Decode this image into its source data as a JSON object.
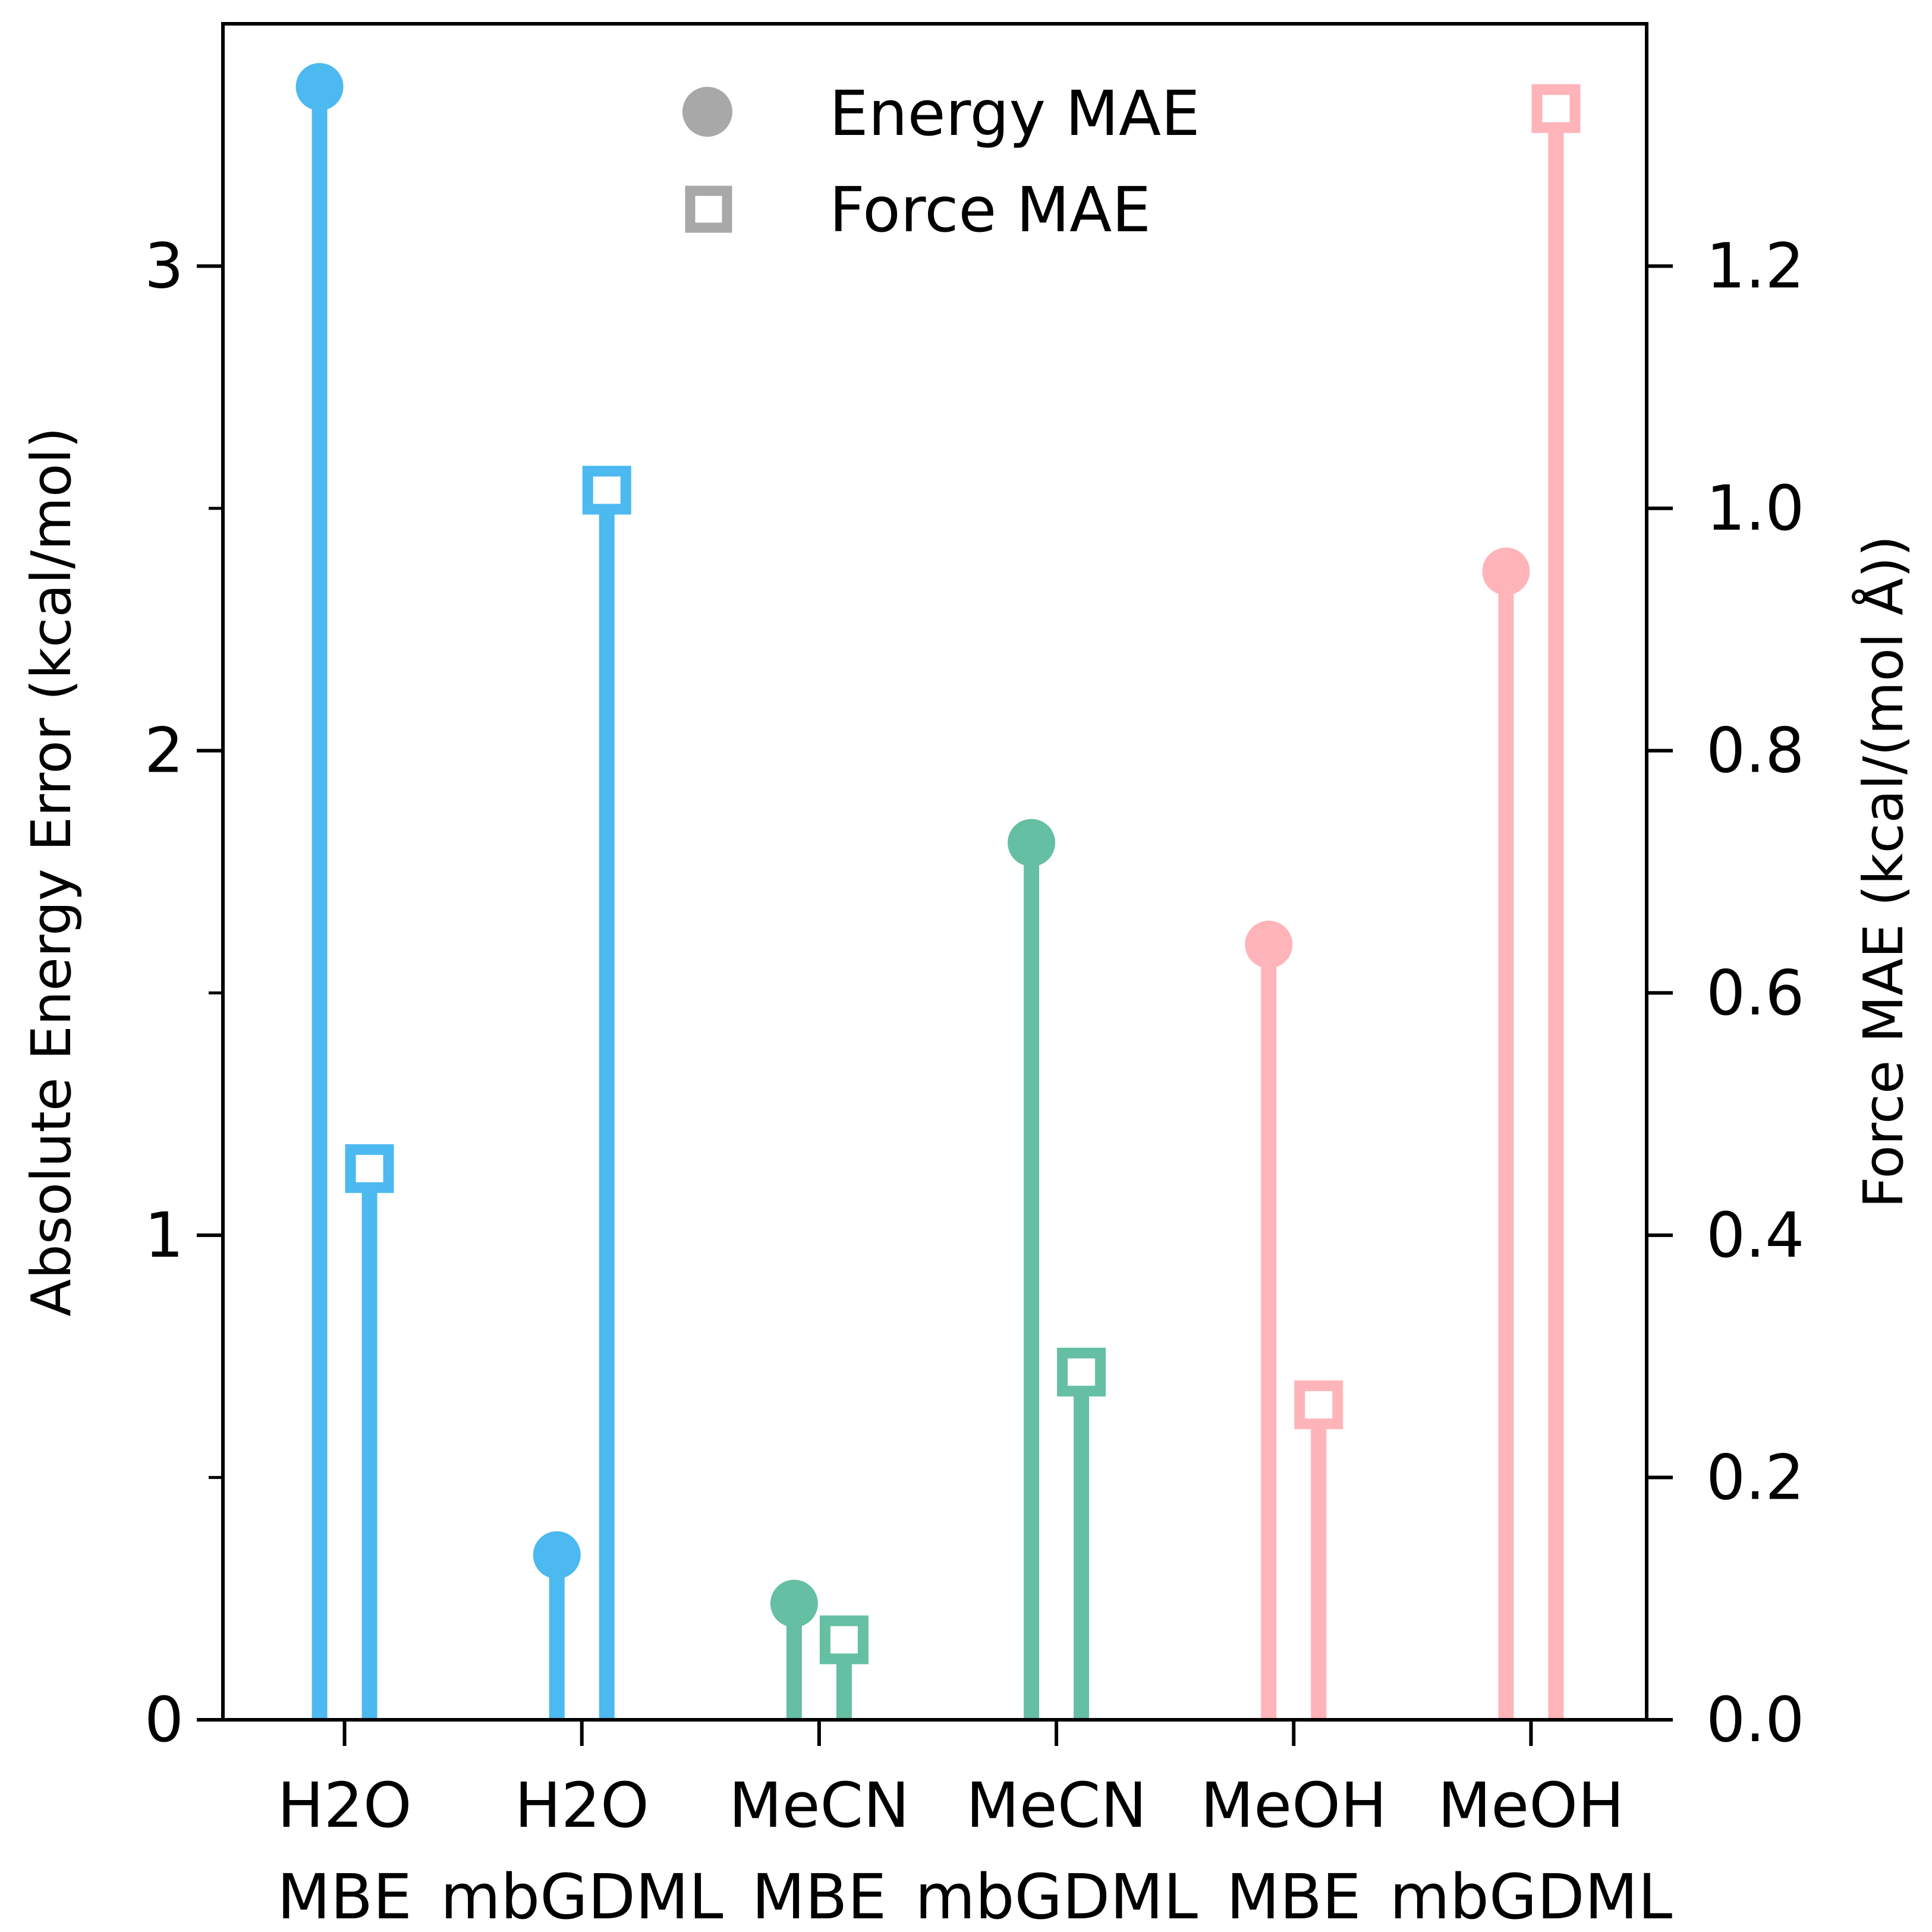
{
  "chart_data": {
    "type": "lollipop",
    "categories": [
      [
        "H2O",
        "MBE"
      ],
      [
        "H2O",
        "mbGDML"
      ],
      [
        "MeCN",
        "MBE"
      ],
      [
        "MeCN",
        "mbGDML"
      ],
      [
        "MeOH",
        "MBE"
      ],
      [
        "MeOH",
        "mbGDML"
      ]
    ],
    "series": [
      {
        "name": "Energy MAE",
        "axis": "left",
        "marker": "circle",
        "values": [
          3.37,
          0.34,
          0.24,
          1.81,
          1.6,
          2.37
        ]
      },
      {
        "name": "Force MAE",
        "axis": "right",
        "marker": "open-square",
        "values": [
          0.455,
          1.015,
          0.066,
          0.287,
          0.26,
          1.33
        ]
      }
    ],
    "point_colors": [
      "#4cb9f0",
      "#4cb9f0",
      "#64bfa3",
      "#64bfa3",
      "#ffb4b9",
      "#ffb4b9"
    ],
    "legend_color": "#a8a8a8",
    "ylabel": "Absolute Energy Error (kcal/mol)",
    "y2label": "Force MAE (kcal/(mol Å))",
    "ylim": [
      0,
      3.5
    ],
    "y2lim": [
      0,
      1.4
    ],
    "yticks": [
      0,
      1,
      2,
      3
    ],
    "yticks_minor": [
      0.5,
      1.5,
      2.5
    ],
    "y2ticks": [
      "0.0",
      "0.2",
      "0.4",
      "0.6",
      "0.8",
      "1.0",
      "1.2"
    ],
    "legend": {
      "position": "top-center",
      "entries": [
        "Energy MAE",
        "Force MAE"
      ]
    },
    "grid": false
  }
}
